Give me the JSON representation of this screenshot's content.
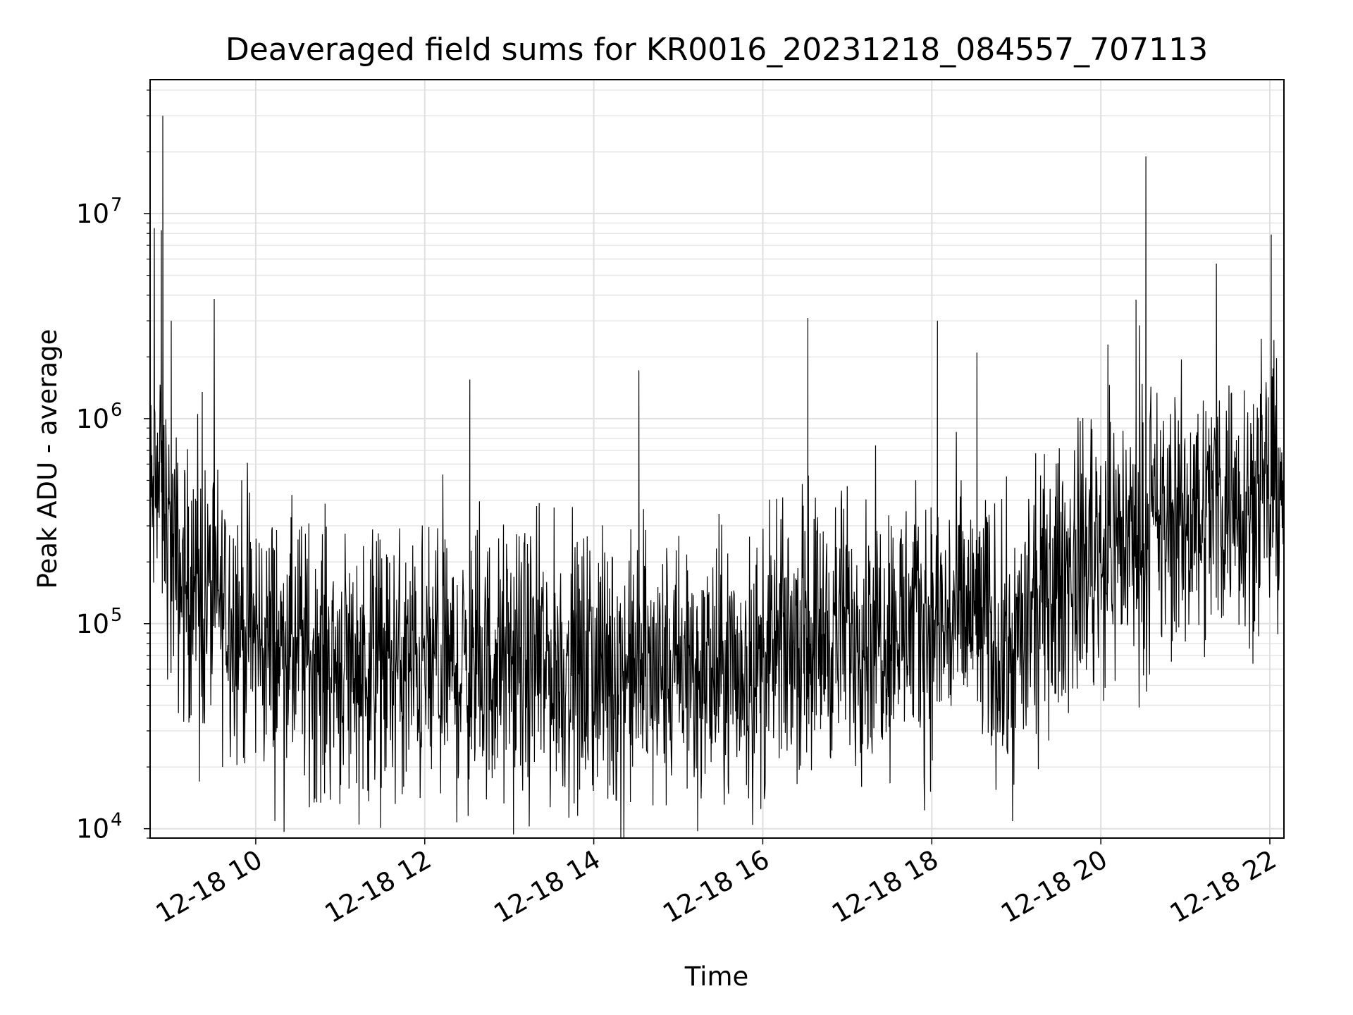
{
  "chart_data": {
    "type": "line",
    "title": "Deaveraged field sums for KR0016_20231218_084557_707113",
    "xlabel": "Time",
    "ylabel": "Peak ADU - average",
    "yscale": "log",
    "ylim": [
      9000,
      45000000
    ],
    "xlim": [
      "2023-12-18 08:45",
      "2023-12-18 22:10"
    ],
    "grid": true,
    "line_color": "#000000",
    "x_ticks": [
      {
        "value": "2023-12-18 10:00",
        "label": "12-18 10"
      },
      {
        "value": "2023-12-18 12:00",
        "label": "12-18 12"
      },
      {
        "value": "2023-12-18 14:00",
        "label": "12-18 14"
      },
      {
        "value": "2023-12-18 16:00",
        "label": "12-18 16"
      },
      {
        "value": "2023-12-18 18:00",
        "label": "12-18 18"
      },
      {
        "value": "2023-12-18 20:00",
        "label": "12-18 20"
      },
      {
        "value": "2023-12-18 22:00",
        "label": "12-18 22"
      }
    ],
    "y_ticks": [
      {
        "value": 10000,
        "base": "10",
        "exp": "4"
      },
      {
        "value": 100000,
        "base": "10",
        "exp": "5"
      },
      {
        "value": 1000000,
        "base": "10",
        "exp": "6"
      },
      {
        "value": 10000000,
        "base": "10",
        "exp": "7"
      }
    ],
    "series": [
      {
        "x": [
          "2023-12-18 08:45",
          "2023-12-18 08:50",
          "2023-12-18 08:55",
          "2023-12-18 09:00",
          "2023-12-18 09:10",
          "2023-12-18 09:20",
          "2023-12-18 09:30",
          "2023-12-18 09:45",
          "2023-12-18 10:00",
          "2023-12-18 10:15",
          "2023-12-18 10:30",
          "2023-12-18 11:00",
          "2023-12-18 11:30",
          "2023-12-18 12:00",
          "2023-12-18 12:30",
          "2023-12-18 13:00",
          "2023-12-18 13:30",
          "2023-12-18 14:00",
          "2023-12-18 14:30",
          "2023-12-18 15:00",
          "2023-12-18 15:30",
          "2023-12-18 16:00",
          "2023-12-18 16:15",
          "2023-12-18 16:30",
          "2023-12-18 17:00",
          "2023-12-18 17:30",
          "2023-12-18 18:00",
          "2023-12-18 18:30",
          "2023-12-18 18:55",
          "2023-12-18 19:10",
          "2023-12-18 19:30",
          "2023-12-18 20:00",
          "2023-12-18 20:30",
          "2023-12-18 21:00",
          "2023-12-18 21:30",
          "2023-12-18 22:00",
          "2023-12-18 22:10"
        ],
        "y": [
          350000,
          500000,
          400000,
          200000,
          150000,
          140000,
          130000,
          110000,
          85000,
          75000,
          72000,
          65000,
          62000,
          60000,
          58000,
          62000,
          60000,
          60000,
          58000,
          55000,
          57000,
          60000,
          80000,
          90000,
          95000,
          100000,
          95000,
          110000,
          65000,
          100000,
          160000,
          250000,
          270000,
          320000,
          420000,
          400000,
          600000
        ]
      }
    ],
    "spikes": [
      {
        "x": "2023-12-18 08:54",
        "y": 30000000
      },
      {
        "x": "2023-12-18 08:48",
        "y": 8500000
      },
      {
        "x": "2023-12-18 08:53",
        "y": 8300000
      },
      {
        "x": "2023-12-18 09:00",
        "y": 3000000
      },
      {
        "x": "2023-12-18 09:22",
        "y": 1350000
      },
      {
        "x": "2023-12-18 12:32",
        "y": 1550000
      },
      {
        "x": "2023-12-18 14:32",
        "y": 1720000
      },
      {
        "x": "2023-12-18 16:32",
        "y": 3100000
      },
      {
        "x": "2023-12-18 18:04",
        "y": 3000000
      },
      {
        "x": "2023-12-18 18:32",
        "y": 2100000
      },
      {
        "x": "2023-12-18 20:05",
        "y": 2300000
      },
      {
        "x": "2023-12-18 20:25",
        "y": 3800000
      },
      {
        "x": "2023-12-18 20:32",
        "y": 19000000
      },
      {
        "x": "2023-12-18 21:22",
        "y": 5700000
      },
      {
        "x": "2023-12-18 22:01",
        "y": 7900000
      }
    ],
    "dips": [
      {
        "x": "2023-12-18 09:20",
        "y": 17000
      },
      {
        "x": "2023-12-18 11:45",
        "y": 16000
      },
      {
        "x": "2023-12-18 13:50",
        "y": 15500
      },
      {
        "x": "2023-12-18 14:10",
        "y": 14000
      },
      {
        "x": "2023-12-18 14:42",
        "y": 13000
      },
      {
        "x": "2023-12-18 19:55",
        "y": 50000
      },
      {
        "x": "2023-12-18 20:02",
        "y": 42000
      }
    ]
  }
}
